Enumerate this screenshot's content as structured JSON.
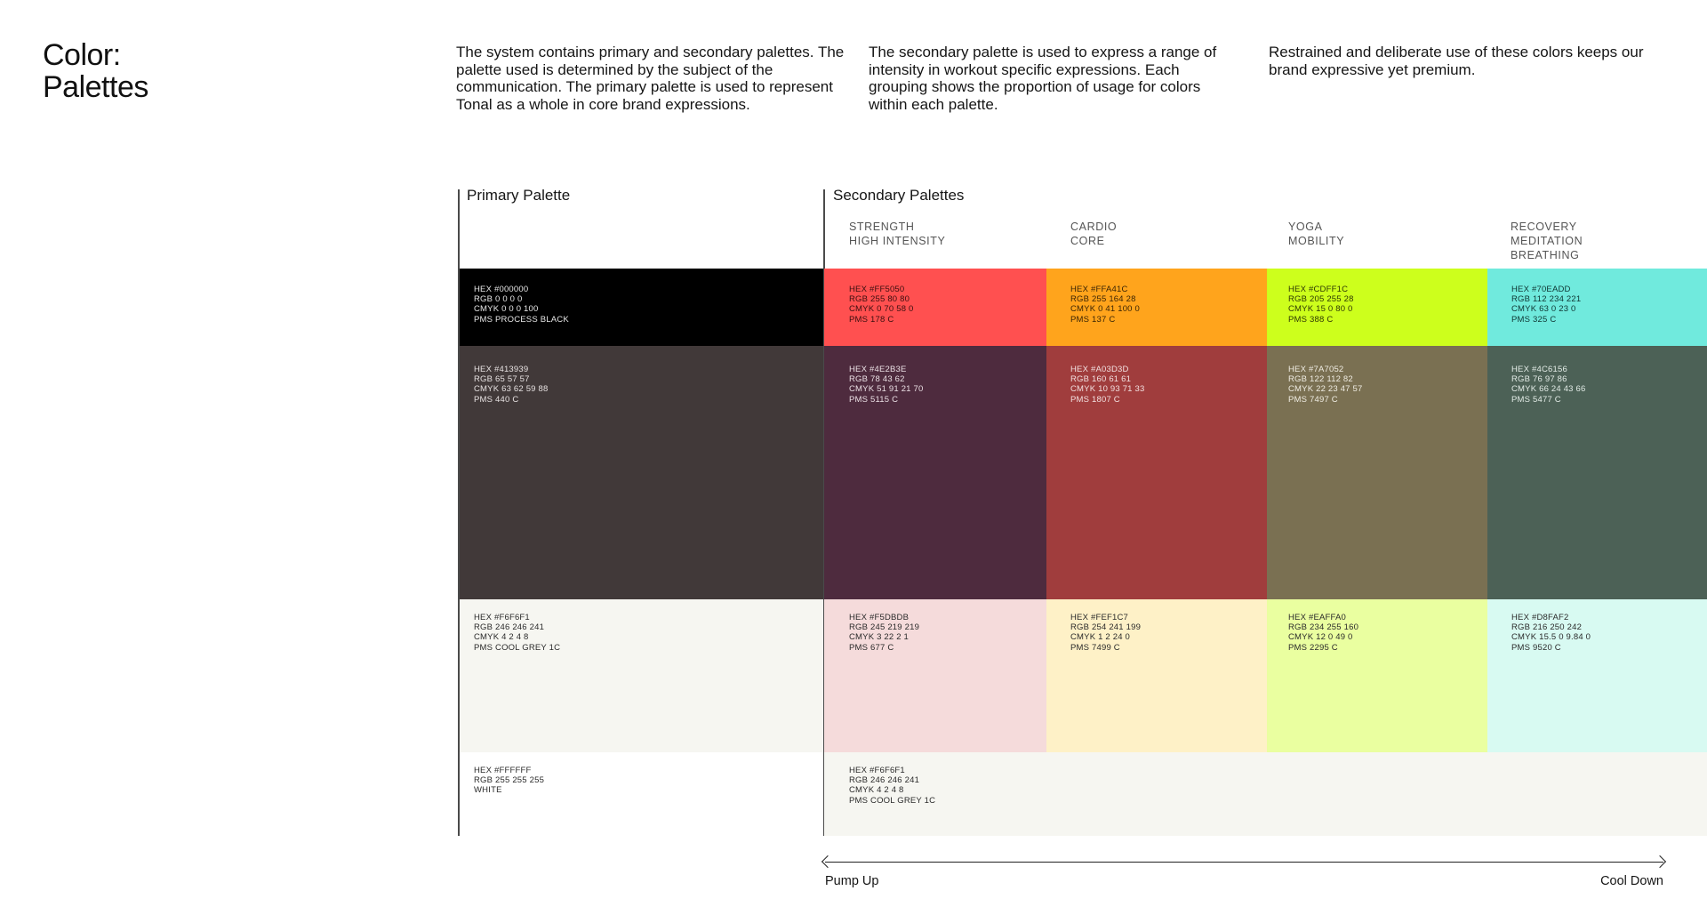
{
  "title": {
    "line1": "Color:",
    "line2": "Palettes"
  },
  "intro": [
    "The system contains primary and secondary palettes. The palette used is determined by the subject of the communication. The primary palette is used to represent Tonal as a whole in core brand expressions.",
    "The secondary palette is used to express a range of intensity in workout specific expressions. Each grouping shows the proportion of usage for colors within each palette.",
    "Restrained and deliberate use of these colors keeps our brand expressive yet premium."
  ],
  "primary": {
    "label": "Primary Palette",
    "swatches": [
      {
        "color": "#000000",
        "text_color": "#e6e6e6",
        "hex": "HEX #000000",
        "rgb": "RGB 0 0 0 0",
        "cmyk": "CMYK 0 0 0 100",
        "pms": "PMS PROCESS BLACK"
      },
      {
        "color": "#413939",
        "text_color": "#e6e1e1",
        "hex": "HEX #413939",
        "rgb": "RGB 65 57 57",
        "cmyk": "CMYK 63 62 59 88",
        "pms": "PMS 440 C"
      },
      {
        "color": "#F6F6F1",
        "text_color": "#2a2a2a",
        "hex": "HEX #F6F6F1",
        "rgb": "RGB 246 246 241",
        "cmyk": "CMYK 4 2 4 8",
        "pms": "PMS COOL GREY 1C"
      },
      {
        "color": "#FFFFFF",
        "text_color": "#2a2a2a",
        "hex": "HEX #FFFFFF",
        "rgb": "RGB 255 255 255",
        "cmyk": "WHITE",
        "pms": ""
      }
    ]
  },
  "secondary": {
    "label": "Secondary Palettes",
    "columns": [
      {
        "heading": [
          "STRENGTH",
          "HIGH INTENSITY"
        ],
        "swatches": [
          {
            "color": "#FF5050",
            "text_color": "#3a0f0f",
            "hex": "HEX #FF5050",
            "rgb": "RGB 255 80 80",
            "cmyk": "CMYK 0 70 58 0",
            "pms": "PMS 178 C"
          },
          {
            "color": "#4E2B3E",
            "text_color": "#eadfe4",
            "hex": "HEX #4E2B3E",
            "rgb": "RGB 78 43 62",
            "cmyk": "CMYK 51 91 21 70",
            "pms": "PMS 5115 C"
          },
          {
            "color": "#F5DBDB",
            "text_color": "#2a2a2a",
            "hex": "HEX #F5DBDB",
            "rgb": "RGB 245 219 219",
            "cmyk": "CMYK 3 22 2 1",
            "pms": "PMS 677 C"
          }
        ]
      },
      {
        "heading": [
          "CARDIO",
          "CORE"
        ],
        "swatches": [
          {
            "color": "#FFA41C",
            "text_color": "#3a2405",
            "hex": "HEX #FFA41C",
            "rgb": "RGB 255 164 28",
            "cmyk": "CMYK 0 41 100 0",
            "pms": "PMS 137 C"
          },
          {
            "color": "#A03D3D",
            "text_color": "#f2e0e0",
            "hex": "HEX #A03D3D",
            "rgb": "RGB 160 61 61",
            "cmyk": "CMYK 10 93 71 33",
            "pms": "PMS 1807 C"
          },
          {
            "color": "#FEF1C7",
            "text_color": "#2a2a2a",
            "hex": "HEX #FEF1C7",
            "rgb": "RGB 254 241 199",
            "cmyk": "CMYK 1 2 24 0",
            "pms": "PMS 7499 C"
          }
        ]
      },
      {
        "heading": [
          "YOGA",
          "MOBILITY"
        ],
        "swatches": [
          {
            "color": "#CDFF1C",
            "text_color": "#2e3805",
            "hex": "HEX #CDFF1C",
            "rgb": "RGB 205 255 28",
            "cmyk": "CMYK 15 0 80 0",
            "pms": "PMS 388 C"
          },
          {
            "color": "#7A7052",
            "text_color": "#efece2",
            "hex": "HEX #7A7052",
            "rgb": "RGB 122 112 82",
            "cmyk": "CMYK  22 23 47 57",
            "pms": "PMS 7497 C"
          },
          {
            "color": "#EAFFA0",
            "text_color": "#2a2a2a",
            "hex": "HEX #EAFFA0",
            "rgb": "RGB 234 255 160",
            "cmyk": "CMYK 12 0 49 0",
            "pms": "PMS 2295 C"
          }
        ]
      },
      {
        "heading": [
          "RECOVERY",
          "MEDITATION",
          "BREATHING"
        ],
        "swatches": [
          {
            "color": "#70EADD",
            "text_color": "#0f3633",
            "hex": "HEX #70EADD",
            "rgb": "RGB 112 234 221",
            "cmyk": "CMYK 63 0 23 0",
            "pms": "PMS 325 C"
          },
          {
            "color": "#4C6156",
            "text_color": "#e2ebe6",
            "hex": "HEX #4C6156",
            "rgb": "RGB 76 97 86",
            "cmyk": "CMYK 66 24 43 66",
            "pms": "PMS 5477 C"
          },
          {
            "color": "#D8FAF2",
            "text_color": "#2a2a2a",
            "hex": "HEX #D8FAF2",
            "rgb": "RGB 216 250 242",
            "cmyk": "CMYK 15.5 0 9.84 0",
            "pms": "PMS 9520 C"
          }
        ]
      }
    ],
    "shared_bottom": {
      "color": "#F6F6F1",
      "text_color": "#2a2a2a",
      "hex": "HEX #F6F6F1",
      "rgb": "RGB 246 246 241",
      "cmyk": "CMYK 4 2 4 8",
      "pms": "PMS COOL GREY 1C"
    }
  },
  "axis": {
    "start_label": "Pump Up",
    "end_label": "Cool Down"
  }
}
